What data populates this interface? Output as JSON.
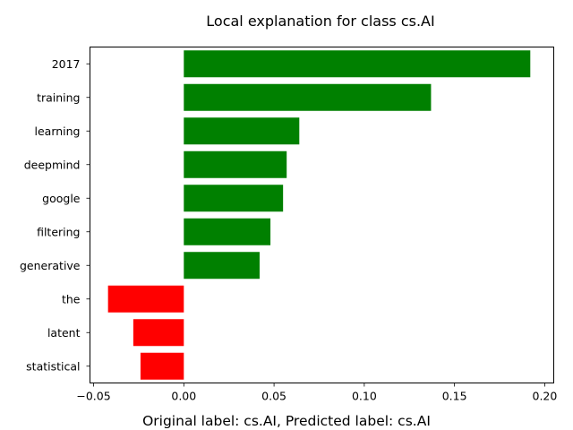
{
  "chart_data": {
    "type": "bar",
    "orientation": "horizontal",
    "title": "Local explanation for class cs.AI",
    "xlabel": "",
    "ylabel": "",
    "categories": [
      "2017",
      "training",
      "learning",
      "deepmind",
      "google",
      "filtering",
      "generative",
      "the",
      "latent",
      "statistical"
    ],
    "values": [
      0.192,
      0.137,
      0.064,
      0.057,
      0.055,
      0.048,
      0.042,
      -0.042,
      -0.028,
      -0.024
    ],
    "xlim": [
      -0.052,
      0.205
    ],
    "xticks": [
      -0.05,
      0.0,
      0.05,
      0.1,
      0.15,
      0.2
    ],
    "xtick_labels": [
      "−0.05",
      "0.00",
      "0.05",
      "0.10",
      "0.15",
      "0.20"
    ],
    "colors": {
      "positive": "#008000",
      "negative": "#ff0000"
    },
    "grid": false,
    "legend": "none"
  },
  "caption": "Original label: cs.AI, Predicted label: cs.AI"
}
